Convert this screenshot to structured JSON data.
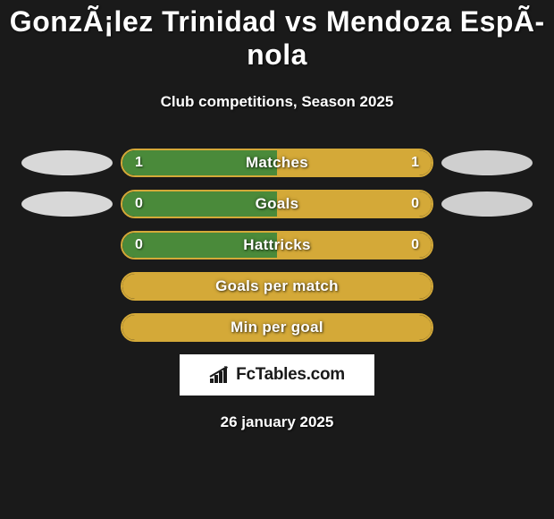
{
  "colors": {
    "background": "#1a1a1a",
    "text": "#ffffff",
    "left_fill": "#4a8a3a",
    "right_fill": "#d4a938",
    "bar_border": "#d4a938",
    "logo_left_bg": "#d8d8d8",
    "logo_right_bg": "#cfcfcf",
    "footer_bg": "#ffffff",
    "footer_text": "#1a1a1a"
  },
  "title": "GonzÃ¡lez Trinidad vs Mendoza EspÃ­nola",
  "subtitle": "Club competitions, Season 2025",
  "rows": [
    {
      "label": "Matches",
      "left": "1",
      "right": "1",
      "left_pct": 50,
      "show_left_logo": true,
      "show_right_logo": true
    },
    {
      "label": "Goals",
      "left": "0",
      "right": "0",
      "left_pct": 50,
      "show_left_logo": true,
      "show_right_logo": true
    },
    {
      "label": "Hattricks",
      "left": "0",
      "right": "0",
      "left_pct": 50,
      "show_left_logo": false,
      "show_right_logo": false
    },
    {
      "label": "Goals per match",
      "left": "",
      "right": "",
      "left_pct": 0,
      "show_left_logo": false,
      "show_right_logo": false
    },
    {
      "label": "Min per goal",
      "left": "",
      "right": "",
      "left_pct": 0,
      "show_left_logo": false,
      "show_right_logo": false
    }
  ],
  "footer_brand": "FcTables.com",
  "footer_date": "26 january 2025"
}
